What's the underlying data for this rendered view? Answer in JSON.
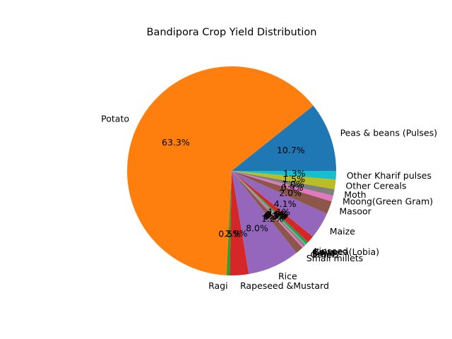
{
  "chart_data": {
    "type": "pie",
    "title": "Bandipora Crop Yield Distribution",
    "start_angle": 0,
    "direction": "counterclockwise",
    "slices": [
      {
        "label": "Peas & beans (Pulses)",
        "value": 10.7,
        "pct_label": "10.7%",
        "color": "#1f77b4"
      },
      {
        "label": "Potato",
        "value": 63.3,
        "pct_label": "63.3%",
        "color": "#ff7f0e"
      },
      {
        "label": "Ragi",
        "value": 0.5,
        "pct_label": "0.5%",
        "color": "#2ca02c"
      },
      {
        "label": "Rapeseed &Mustard",
        "value": 2.9,
        "pct_label": "2.9%",
        "color": "#d62728"
      },
      {
        "label": "Rice",
        "value": 8.0,
        "pct_label": "8.0%",
        "color": "#9467bd"
      },
      {
        "label": "Small millets",
        "value": 1.2,
        "pct_label": "1.2%",
        "color": "#8c564b"
      },
      {
        "label": "Other",
        "value": 0.3,
        "pct_label": "0.3%",
        "color": "#e377c2"
      },
      {
        "label": "Barley",
        "value": 0.3,
        "pct_label": "0.3%",
        "color": "#7f7f7f"
      },
      {
        "label": "Bajra",
        "value": 0.1,
        "pct_label": "0.1%",
        "color": "#bcbd22"
      },
      {
        "label": "Cowpea(Lobia)",
        "value": 0.1,
        "pct_label": "0.1%",
        "color": "#17becf"
      },
      {
        "label": "Linseed",
        "value": 0.1,
        "pct_label": "0.1%",
        "color": "#1f77b4"
      },
      {
        "label": "",
        "value": 0.3,
        "pct_label": "0.3%",
        "color": "#2ca02c"
      },
      {
        "label": "",
        "value": 1.1,
        "pct_label": "1.1%",
        "color": "#d62728"
      },
      {
        "label": "Maize",
        "value": 4.1,
        "pct_label": "4.1%",
        "color": "#9467bd"
      },
      {
        "label": "Masoor",
        "value": 2.0,
        "pct_label": "2.0%",
        "color": "#8c564b"
      },
      {
        "label": "Moong(Green Gram)",
        "value": 0.9,
        "pct_label": "0.9%",
        "color": "#e377c2"
      },
      {
        "label": "Moth",
        "value": 1.0,
        "pct_label": "1.0%",
        "color": "#7f7f7f"
      },
      {
        "label": "Other Cereals",
        "value": 1.5,
        "pct_label": "1.5%",
        "color": "#bcbd22"
      },
      {
        "label": "Other Kharif pulses",
        "value": 1.3,
        "pct_label": "1.3%",
        "color": "#17becf"
      }
    ]
  }
}
